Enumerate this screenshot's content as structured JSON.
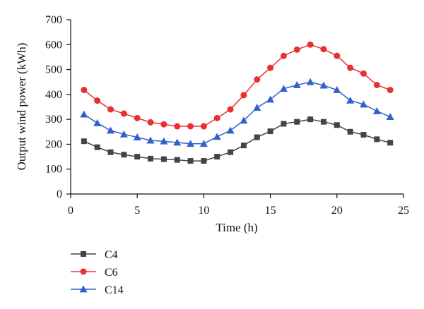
{
  "chart_data": {
    "type": "line",
    "xlabel": "Time (h)",
    "ylabel": "Output wind power (kWh)",
    "xlim": [
      0,
      25
    ],
    "ylim": [
      0,
      700
    ],
    "xticks": [
      0,
      5,
      10,
      15,
      20,
      25
    ],
    "yticks": [
      0,
      100,
      200,
      300,
      400,
      500,
      600,
      700
    ],
    "grid": false,
    "legend_position": "bottom-left, below plot",
    "x": [
      1,
      2,
      3,
      4,
      5,
      6,
      7,
      8,
      9,
      10,
      11,
      12,
      13,
      14,
      15,
      16,
      17,
      18,
      19,
      20,
      21,
      22,
      23,
      24
    ],
    "series": [
      {
        "name": "C4",
        "color": "#444444",
        "marker": "square",
        "values": [
          212,
          188,
          168,
          158,
          150,
          142,
          140,
          137,
          133,
          133,
          150,
          168,
          195,
          228,
          252,
          282,
          290,
          300,
          290,
          277,
          250,
          238,
          220,
          206
        ]
      },
      {
        "name": "C6",
        "color": "#e8312f",
        "marker": "circle",
        "values": [
          418,
          375,
          340,
          323,
          305,
          288,
          280,
          272,
          272,
          272,
          305,
          340,
          397,
          460,
          507,
          555,
          580,
          600,
          582,
          555,
          507,
          484,
          438,
          418
        ]
      },
      {
        "name": "C14",
        "color": "#2f63c9",
        "marker": "triangle",
        "values": [
          320,
          285,
          255,
          240,
          228,
          215,
          212,
          207,
          202,
          202,
          230,
          255,
          295,
          347,
          380,
          423,
          438,
          450,
          436,
          418,
          376,
          360,
          333,
          310
        ]
      }
    ]
  }
}
